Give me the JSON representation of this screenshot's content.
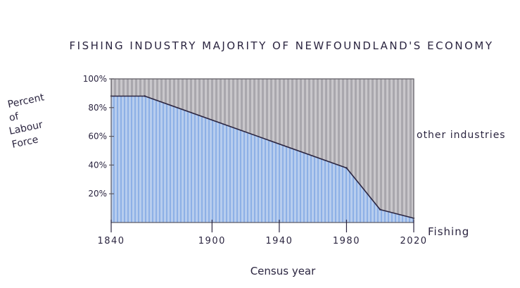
{
  "chart_data": {
    "type": "area",
    "title": "FISHING INDUSTRY MAJORITY OF NEWFOUNDLAND'S ECONOMY",
    "ylabel": [
      "Percent",
      "of",
      "Labour",
      "Force"
    ],
    "xlabel": "Census year",
    "x_ticks": [
      "1840",
      "1900",
      "1940",
      "1980",
      "2020"
    ],
    "y_ticks": [
      "100%",
      "80%",
      "60%",
      "40%",
      "20%"
    ],
    "series": [
      {
        "name": "Fishing",
        "x": [
          1840,
          1860,
          1980,
          2000,
          2020
        ],
        "values": [
          88,
          88,
          38,
          9,
          3
        ]
      },
      {
        "name": "other industries"
      }
    ],
    "ylim": [
      0,
      100
    ],
    "grid": false,
    "colors": {
      "fishing": "#8fb4e8",
      "other": "#a9a6ab",
      "line": "#2b2540",
      "frame": "#5a5860"
    }
  }
}
